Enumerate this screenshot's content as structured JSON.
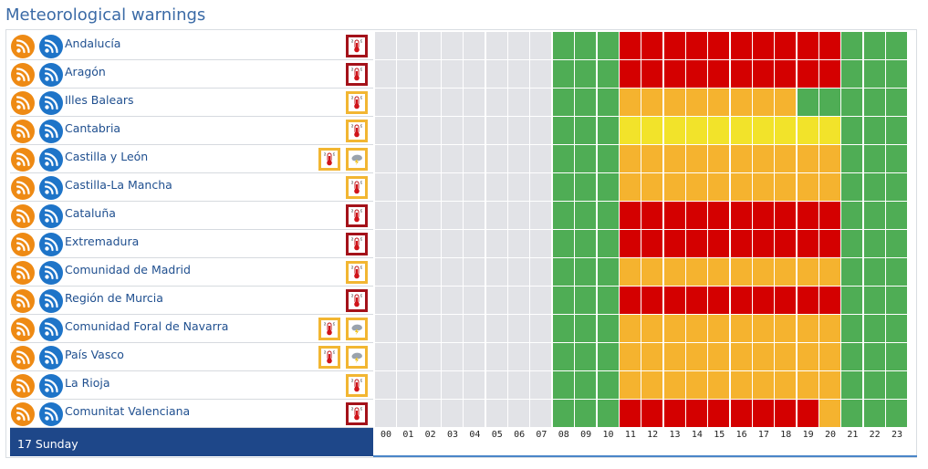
{
  "title": "Meteorological warnings",
  "colors": {
    "none": "#e2e3e7",
    "green": "#4fad55",
    "yellow": "#f2e32a",
    "orange": "#f5b32f",
    "red": "#d40000",
    "border_yellow": "#f2b632",
    "border_red": "#a4121a"
  },
  "level_legend": {
    "0": "no data",
    "1": "green",
    "2": "yellow",
    "3": "orange",
    "4": "red"
  },
  "regions": [
    {
      "name": "Andalucía",
      "icons": [
        {
          "type": "thermometer-icon",
          "level": "red"
        }
      ],
      "levels": [
        0,
        0,
        0,
        0,
        0,
        0,
        0,
        0,
        1,
        1,
        1,
        4,
        4,
        4,
        4,
        4,
        4,
        4,
        4,
        4,
        4,
        1,
        1,
        1
      ]
    },
    {
      "name": "Aragón",
      "icons": [
        {
          "type": "thermometer-icon",
          "level": "red"
        }
      ],
      "levels": [
        0,
        0,
        0,
        0,
        0,
        0,
        0,
        0,
        1,
        1,
        1,
        4,
        4,
        4,
        4,
        4,
        4,
        4,
        4,
        4,
        4,
        1,
        1,
        1
      ]
    },
    {
      "name": "Illes Balears",
      "icons": [
        {
          "type": "thermometer-icon",
          "level": "yellow"
        }
      ],
      "levels": [
        0,
        0,
        0,
        0,
        0,
        0,
        0,
        0,
        1,
        1,
        1,
        3,
        3,
        3,
        3,
        3,
        3,
        3,
        3,
        1,
        1,
        1,
        1,
        1
      ]
    },
    {
      "name": "Cantabria",
      "icons": [
        {
          "type": "thermometer-icon",
          "level": "yellow"
        }
      ],
      "levels": [
        0,
        0,
        0,
        0,
        0,
        0,
        0,
        0,
        1,
        1,
        1,
        2,
        2,
        2,
        2,
        2,
        2,
        2,
        2,
        2,
        2,
        1,
        1,
        1
      ]
    },
    {
      "name": "Castilla y León",
      "icons": [
        {
          "type": "thermometer-icon",
          "level": "yellow"
        },
        {
          "type": "storm-icon",
          "level": "yellow"
        }
      ],
      "levels": [
        0,
        0,
        0,
        0,
        0,
        0,
        0,
        0,
        1,
        1,
        1,
        3,
        3,
        3,
        3,
        3,
        3,
        3,
        3,
        3,
        3,
        1,
        1,
        1
      ]
    },
    {
      "name": "Castilla-La Mancha",
      "icons": [
        {
          "type": "thermometer-icon",
          "level": "yellow"
        }
      ],
      "levels": [
        0,
        0,
        0,
        0,
        0,
        0,
        0,
        0,
        1,
        1,
        1,
        3,
        3,
        3,
        3,
        3,
        3,
        3,
        3,
        3,
        3,
        1,
        1,
        1
      ]
    },
    {
      "name": "Cataluña",
      "icons": [
        {
          "type": "thermometer-icon",
          "level": "red"
        }
      ],
      "levels": [
        0,
        0,
        0,
        0,
        0,
        0,
        0,
        0,
        1,
        1,
        1,
        4,
        4,
        4,
        4,
        4,
        4,
        4,
        4,
        4,
        4,
        1,
        1,
        1
      ]
    },
    {
      "name": "Extremadura",
      "icons": [
        {
          "type": "thermometer-icon",
          "level": "red"
        }
      ],
      "levels": [
        0,
        0,
        0,
        0,
        0,
        0,
        0,
        0,
        1,
        1,
        1,
        4,
        4,
        4,
        4,
        4,
        4,
        4,
        4,
        4,
        4,
        1,
        1,
        1
      ]
    },
    {
      "name": "Comunidad de Madrid",
      "icons": [
        {
          "type": "thermometer-icon",
          "level": "yellow"
        }
      ],
      "levels": [
        0,
        0,
        0,
        0,
        0,
        0,
        0,
        0,
        1,
        1,
        1,
        3,
        3,
        3,
        3,
        3,
        3,
        3,
        3,
        3,
        3,
        1,
        1,
        1
      ]
    },
    {
      "name": "Región de Murcia",
      "icons": [
        {
          "type": "thermometer-icon",
          "level": "red"
        }
      ],
      "levels": [
        0,
        0,
        0,
        0,
        0,
        0,
        0,
        0,
        1,
        1,
        1,
        4,
        4,
        4,
        4,
        4,
        4,
        4,
        4,
        4,
        4,
        1,
        1,
        1
      ]
    },
    {
      "name": "Comunidad Foral de Navarra",
      "icons": [
        {
          "type": "thermometer-icon",
          "level": "yellow"
        },
        {
          "type": "storm-icon",
          "level": "yellow"
        }
      ],
      "levels": [
        0,
        0,
        0,
        0,
        0,
        0,
        0,
        0,
        1,
        1,
        1,
        3,
        3,
        3,
        3,
        3,
        3,
        3,
        3,
        3,
        3,
        1,
        1,
        1
      ]
    },
    {
      "name": "País Vasco",
      "icons": [
        {
          "type": "thermometer-icon",
          "level": "yellow"
        },
        {
          "type": "storm-icon",
          "level": "yellow"
        }
      ],
      "levels": [
        0,
        0,
        0,
        0,
        0,
        0,
        0,
        0,
        1,
        1,
        1,
        3,
        3,
        3,
        3,
        3,
        3,
        3,
        3,
        3,
        3,
        1,
        1,
        1
      ]
    },
    {
      "name": "La Rioja",
      "icons": [
        {
          "type": "thermometer-icon",
          "level": "yellow"
        }
      ],
      "levels": [
        0,
        0,
        0,
        0,
        0,
        0,
        0,
        0,
        1,
        1,
        1,
        3,
        3,
        3,
        3,
        3,
        3,
        3,
        3,
        3,
        3,
        1,
        1,
        1
      ]
    },
    {
      "name": "Comunitat Valenciana",
      "icons": [
        {
          "type": "thermometer-icon",
          "level": "red"
        }
      ],
      "levels": [
        0,
        0,
        0,
        0,
        0,
        0,
        0,
        0,
        1,
        1,
        1,
        4,
        4,
        4,
        4,
        4,
        4,
        4,
        4,
        4,
        3,
        1,
        1,
        1
      ]
    }
  ],
  "footer": {
    "day_label": "17 Sunday"
  },
  "hours": [
    "00",
    "01",
    "02",
    "03",
    "04",
    "05",
    "06",
    "07",
    "08",
    "09",
    "10",
    "11",
    "12",
    "13",
    "14",
    "15",
    "16",
    "17",
    "18",
    "19",
    "20",
    "21",
    "22",
    "23"
  ]
}
